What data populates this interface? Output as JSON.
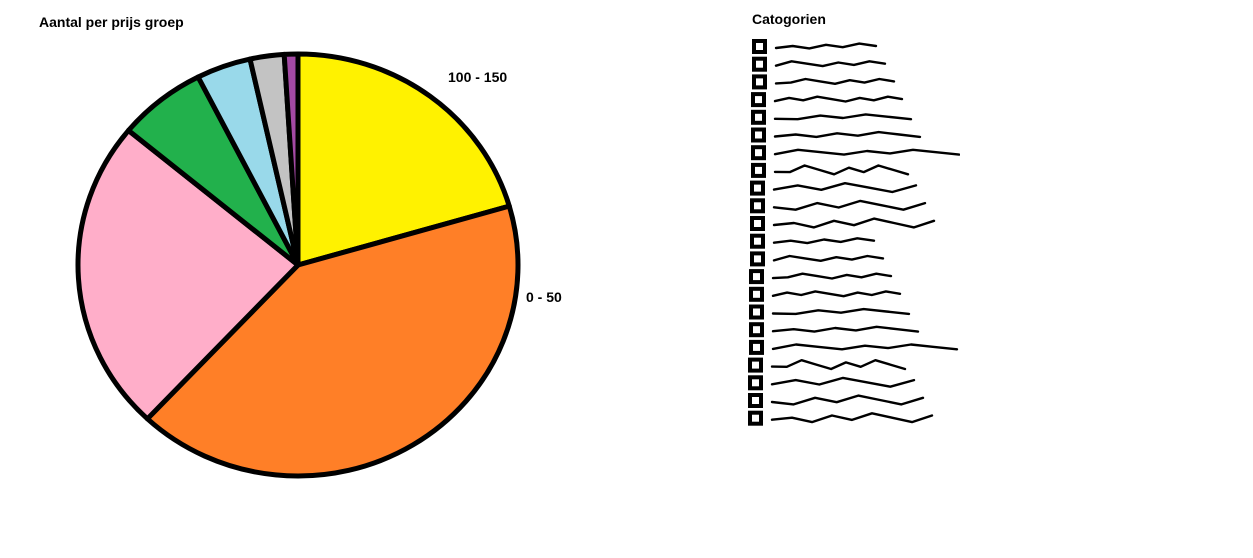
{
  "chart_data": {
    "type": "pie",
    "title": "Aantal per prijs groep",
    "legend_title": "Catogorien",
    "legend_position": "right",
    "slices": [
      {
        "label": "100 - 150",
        "value": 20.5,
        "color": "#fff200"
      },
      {
        "label": "0 - 50",
        "value": 41.5,
        "color": "#ff7f27"
      },
      {
        "label": "",
        "value": 24.0,
        "color": "#ffaec9"
      },
      {
        "label": "",
        "value": 6.5,
        "color": "#22b14c"
      },
      {
        "label": "",
        "value": 4.0,
        "color": "#99d9ea"
      },
      {
        "label": "",
        "value": 2.5,
        "color": "#c3c3c3"
      },
      {
        "label": "",
        "value": 1.0,
        "color": "#a349a4"
      }
    ],
    "legend_entries": 22,
    "outline_color": "#000000"
  }
}
